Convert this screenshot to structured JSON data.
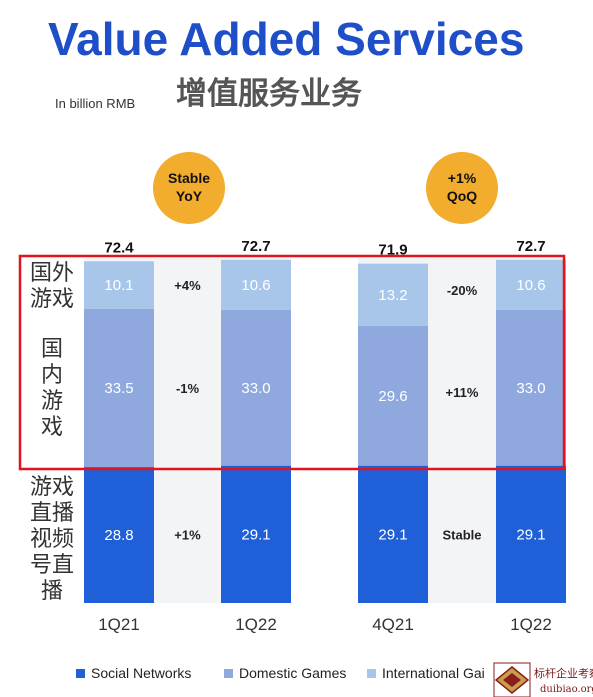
{
  "chart_data": {
    "type": "bar",
    "title": "Value Added Services",
    "subtitle": "增值服务业务",
    "ylabel": "In billion RMB",
    "categories": [
      "1Q21",
      "1Q22",
      "4Q21",
      "1Q22"
    ],
    "series": [
      {
        "name": "Social Networks",
        "color": "#1f5fd8",
        "values": [
          28.8,
          29.1,
          29.1,
          29.1
        ]
      },
      {
        "name": "Domestic Games",
        "color": "#8fa9df",
        "values": [
          33.5,
          33.0,
          29.6,
          33.0
        ]
      },
      {
        "name": "International Games",
        "color": "#a7c6ea",
        "values": [
          10.1,
          10.6,
          13.2,
          10.6
        ]
      }
    ],
    "totals": [
      "72.4",
      "72.7",
      "71.9",
      "72.7"
    ],
    "value_labels": [
      [
        "28.8",
        "33.5",
        "10.1"
      ],
      [
        "29.1",
        "33.0",
        "10.6"
      ],
      [
        "29.1",
        "29.6",
        "13.2"
      ],
      [
        "29.1",
        "33.0",
        "10.6"
      ]
    ],
    "changes": [
      [
        "+1%",
        "-1%",
        "+4%"
      ],
      [
        "Stable",
        "+11%",
        "-20%"
      ]
    ],
    "badges": [
      {
        "line1": "Stable",
        "line2": "YoY",
        "color": "#f2ac2e"
      },
      {
        "line1": "+1%",
        "line2": "QoQ",
        "color": "#f2ac2e"
      }
    ],
    "side_labels": [
      "国外游戏",
      "国内游戏",
      "游戏直播视频号直播"
    ],
    "legend_labels": [
      "Social Networks",
      "Domestic Games",
      "International Gai"
    ],
    "highlight_color": "#e0141e"
  },
  "watermark": {
    "title": "标杆企业考察",
    "url": "duibiao.org"
  }
}
